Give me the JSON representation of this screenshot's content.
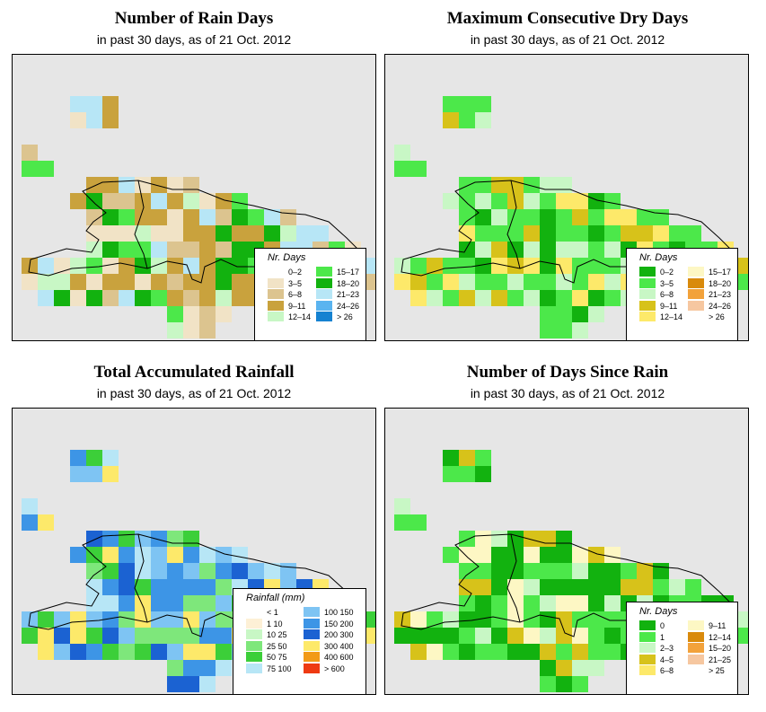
{
  "panels": [
    {
      "id": "rain-days",
      "title": "Number of Rain Days",
      "subtitle": "in past 30 days, as of  21 Oct. 2012",
      "legend": {
        "title": "Nr. Days",
        "items": [
          {
            "label": "0–2",
            "color": "#ffffff"
          },
          {
            "label": "3–5",
            "color": "#f1e3c6"
          },
          {
            "label": "6–8",
            "color": "#dcc48f"
          },
          {
            "label": "9–11",
            "color": "#c9a23d"
          },
          {
            "label": "12–14",
            "color": "#c8f7c5"
          },
          {
            "label": "15–17",
            "color": "#4ce84a"
          },
          {
            "label": "18–20",
            "color": "#12b20f"
          },
          {
            "label": "21–23",
            "color": "#b7e6f6"
          },
          {
            "label": "24–26",
            "color": "#5ab4f0"
          },
          {
            "label": "> 26",
            "color": "#1582d1"
          }
        ]
      }
    },
    {
      "id": "max-dry-days",
      "title": "Maximum Consecutive Dry Days",
      "subtitle": "in past 30 days, as of  21 Oct. 2012",
      "legend": {
        "title": "Nr. Days",
        "items": [
          {
            "label": "0–2",
            "color": "#12b20f"
          },
          {
            "label": "3–5",
            "color": "#4ce84a"
          },
          {
            "label": "6–8",
            "color": "#c8f7c5"
          },
          {
            "label": "9–11",
            "color": "#d7c21a"
          },
          {
            "label": "12–14",
            "color": "#fde96a"
          },
          {
            "label": "15–17",
            "color": "#fdf7c4"
          },
          {
            "label": "18–20",
            "color": "#d98a0c"
          },
          {
            "label": "21–23",
            "color": "#f2a23b"
          },
          {
            "label": "24–26",
            "color": "#f6c7a0"
          },
          {
            "label": "> 26",
            "color": "#ffffff"
          }
        ]
      }
    },
    {
      "id": "total-rainfall",
      "title": "Total Accumulated Rainfall",
      "subtitle": "in past 30 days, as of  21 Oct. 2012",
      "legend": {
        "title": "Rainfall (mm)",
        "items": [
          {
            "label": "< 1",
            "color": "#ffffff"
          },
          {
            "label": "1    10",
            "color": "#fdf0d6"
          },
          {
            "label": "10    25",
            "color": "#c8f7c5"
          },
          {
            "label": "25    50",
            "color": "#7ee77b"
          },
          {
            "label": "50    75",
            "color": "#3ccf39"
          },
          {
            "label": "75    100",
            "color": "#b7e6f6"
          },
          {
            "label": "100  150",
            "color": "#7ec4f3"
          },
          {
            "label": "150  200",
            "color": "#3d95e6"
          },
          {
            "label": "200  300",
            "color": "#1b62d2"
          },
          {
            "label": "300  400",
            "color": "#fde96a"
          },
          {
            "label": "400  600",
            "color": "#f29a17"
          },
          {
            "label": "> 600",
            "color": "#ee3a12"
          }
        ]
      }
    },
    {
      "id": "days-since-rain",
      "title": "Number of Days Since Rain",
      "subtitle": "in past 30 days, as of  21 Oct. 2012",
      "legend": {
        "title": "Nr. Days",
        "items": [
          {
            "label": "0",
            "color": "#12b20f"
          },
          {
            "label": "1",
            "color": "#4ce84a"
          },
          {
            "label": "2–3",
            "color": "#c8f7c5"
          },
          {
            "label": "4–5",
            "color": "#d7c21a"
          },
          {
            "label": "6–8",
            "color": "#fde96a"
          },
          {
            "label": "9–11",
            "color": "#fdf7c4"
          },
          {
            "label": "12–14",
            "color": "#d98a0c"
          },
          {
            "label": "15–20",
            "color": "#f2a23b"
          },
          {
            "label": "21–25",
            "color": "#f6c7a0"
          },
          {
            "label": "> 25",
            "color": "#ffffff"
          }
        ]
      }
    }
  ]
}
